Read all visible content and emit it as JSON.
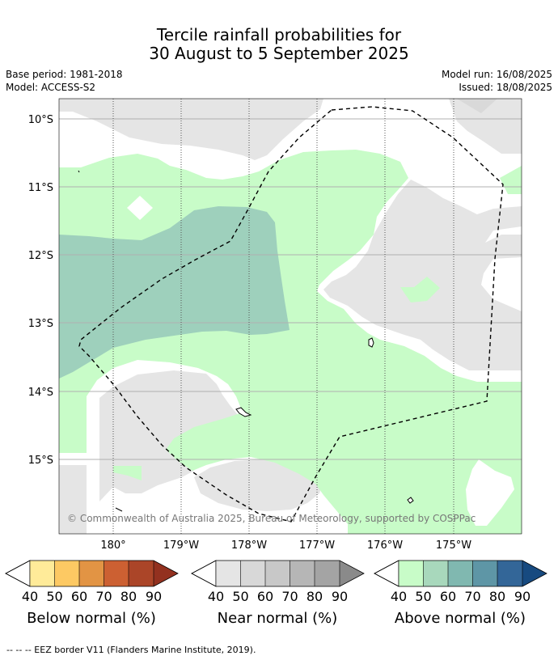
{
  "header": {
    "title_line1": "Tercile rainfall probabilities for",
    "title_line2": "30 August to 5 September 2025",
    "base_period": "Base period: 1981-2018",
    "model": "Model: ACCESS-S2",
    "model_run": "Model run: 16/08/2025",
    "issued": "Issued: 18/08/2025"
  },
  "map": {
    "lat_labels": [
      "10°S",
      "11°S",
      "12°S",
      "13°S",
      "14°S",
      "15°S"
    ],
    "lon_labels": [
      "180°",
      "179°W",
      "178°W",
      "177°W",
      "176°W",
      "175°W"
    ],
    "copyright": "© Commonwealth of Australia 2025, Bureau of Meteorology, supported by COSPPac",
    "colors": {
      "near_normal_40": "#e5e5e5",
      "near_normal_50": "#d9d9d9",
      "above_normal_40": "#c8fcc8",
      "above_normal_50": "#9ed0bc",
      "land_outline": "#000000",
      "eez_border": "#000000"
    }
  },
  "colorbars": [
    {
      "title": "Below normal (%)",
      "ticks": [
        "40",
        "50",
        "60",
        "70",
        "80",
        "90"
      ],
      "colors": [
        "#ffeb99",
        "#fdc963",
        "#e29444",
        "#cc6032",
        "#ab4528",
        "#93311f"
      ]
    },
    {
      "title": "Near normal (%)",
      "ticks": [
        "40",
        "50",
        "60",
        "70",
        "80",
        "90"
      ],
      "colors": [
        "#e5e5e5",
        "#d8d8d8",
        "#c8c8c8",
        "#b6b6b6",
        "#a4a4a4",
        "#8a8a8a"
      ]
    },
    {
      "title": "Above normal (%)",
      "ticks": [
        "40",
        "50",
        "60",
        "70",
        "80",
        "90"
      ],
      "colors": [
        "#c8fcc8",
        "#a8d8bc",
        "#80b8b0",
        "#5e96a6",
        "#336698",
        "#174a80"
      ]
    }
  ],
  "footnote": "--  --  -- EEZ border V11 (Flanders Marine Institute, 2019)."
}
